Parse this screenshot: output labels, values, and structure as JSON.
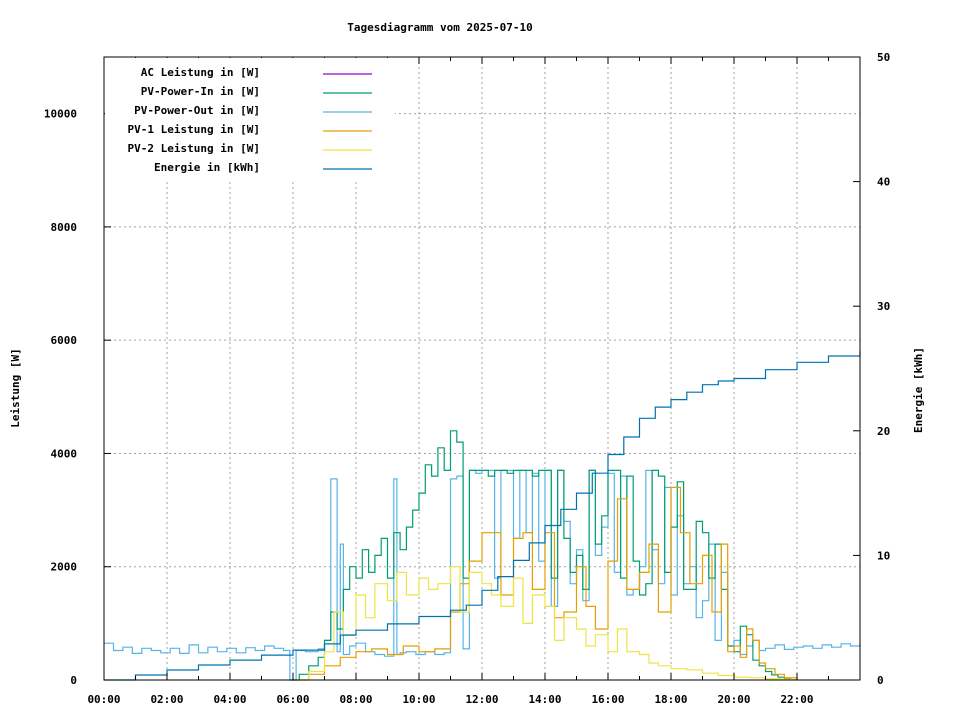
{
  "chart_data": {
    "type": "line",
    "title": "Tagesdiagramm vom 2025-07-10",
    "xlabel": "",
    "ylabel": "Leistung [W]",
    "y2label": "Energie [kWh]",
    "xlim": [
      0,
      24
    ],
    "ylim": [
      0,
      11000
    ],
    "y2lim": [
      0,
      50
    ],
    "x_ticks": [
      "00:00",
      "02:00",
      "04:00",
      "06:00",
      "08:00",
      "10:00",
      "12:00",
      "14:00",
      "16:00",
      "18:00",
      "20:00",
      "22:00"
    ],
    "y_ticks": [
      "0",
      "2000",
      "4000",
      "6000",
      "8000",
      "10000"
    ],
    "y2_ticks": [
      "0",
      "10",
      "20",
      "30",
      "40",
      "50"
    ],
    "grid": true,
    "legend_position": "top-left",
    "series": [
      {
        "name": "AC Leistung in [W]",
        "color": "#9400d3",
        "axis": "y1",
        "x": [
          0,
          24
        ],
        "values": [
          0,
          0
        ]
      },
      {
        "name": "PV-Power-In in [W]",
        "color": "#009e73",
        "axis": "y1",
        "x": [
          5.9,
          6.2,
          6.5,
          6.8,
          7.0,
          7.2,
          7.4,
          7.6,
          7.8,
          8.0,
          8.2,
          8.4,
          8.6,
          8.8,
          9.0,
          9.2,
          9.4,
          9.6,
          9.8,
          10.0,
          10.2,
          10.4,
          10.6,
          10.8,
          11.0,
          11.2,
          11.4,
          11.6,
          11.8,
          12.0,
          12.2,
          12.4,
          12.6,
          12.8,
          13.0,
          13.2,
          13.4,
          13.6,
          13.8,
          14.0,
          14.2,
          14.4,
          14.6,
          14.8,
          15.0,
          15.2,
          15.4,
          15.6,
          15.8,
          16.0,
          16.2,
          16.4,
          16.6,
          16.8,
          17.0,
          17.2,
          17.4,
          17.6,
          17.8,
          18.0,
          18.2,
          18.4,
          18.6,
          18.8,
          19.0,
          19.2,
          19.4,
          19.6,
          19.8,
          20.0,
          20.2,
          20.4,
          20.6,
          20.8,
          21.0,
          21.2,
          21.4,
          21.6,
          21.8,
          22.0
        ],
        "values": [
          0,
          100,
          250,
          400,
          700,
          1200,
          900,
          1600,
          2000,
          1800,
          2300,
          1900,
          2200,
          2500,
          1800,
          2600,
          2300,
          2700,
          3000,
          3300,
          3800,
          3600,
          4100,
          3700,
          4400,
          4200,
          1800,
          3700,
          3700,
          3700,
          3600,
          3700,
          3700,
          3650,
          3700,
          3700,
          3700,
          3600,
          3700,
          3700,
          1800,
          3700,
          2500,
          1900,
          2200,
          1600,
          3700,
          2400,
          2900,
          3700,
          3700,
          1800,
          3600,
          2100,
          1500,
          1700,
          3700,
          3600,
          1900,
          2700,
          3500,
          1600,
          1600,
          2800,
          2600,
          1800,
          2400,
          1600,
          600,
          500,
          950,
          800,
          350,
          250,
          150,
          90,
          50,
          20,
          5,
          0
        ]
      },
      {
        "name": "PV-Power-Out in [W]",
        "color": "#56b4e9",
        "axis": "y1",
        "x": [
          0,
          0.3,
          0.6,
          0.9,
          1.2,
          1.5,
          1.8,
          2.1,
          2.4,
          2.7,
          3.0,
          3.3,
          3.6,
          3.9,
          4.2,
          4.5,
          4.8,
          5.1,
          5.4,
          5.7,
          5.9,
          6.1,
          6.4,
          6.8,
          7.0,
          7.2,
          7.3,
          7.4,
          7.5,
          7.6,
          7.8,
          8.0,
          8.3,
          8.6,
          8.9,
          9.2,
          9.3,
          9.4,
          9.6,
          9.9,
          10.2,
          10.5,
          10.8,
          11.0,
          11.2,
          11.4,
          11.6,
          11.8,
          12.0,
          12.2,
          12.4,
          12.6,
          12.8,
          13.0,
          13.2,
          13.4,
          13.6,
          13.8,
          14.0,
          14.2,
          14.4,
          14.6,
          14.8,
          15.0,
          15.2,
          15.4,
          15.6,
          15.8,
          16.0,
          16.2,
          16.4,
          16.6,
          16.8,
          17.0,
          17.2,
          17.4,
          17.6,
          17.8,
          18.0,
          18.2,
          18.4,
          18.6,
          18.8,
          19.0,
          19.2,
          19.4,
          19.6,
          19.8,
          20.0,
          20.2,
          20.4,
          20.6,
          20.8,
          21.0,
          21.3,
          21.6,
          21.9,
          22.2,
          22.5,
          22.8,
          23.1,
          23.4,
          23.7,
          24.0
        ],
        "values": [
          650,
          520,
          580,
          470,
          560,
          520,
          480,
          560,
          470,
          620,
          480,
          580,
          500,
          560,
          480,
          570,
          520,
          600,
          560,
          520,
          0,
          520,
          500,
          550,
          700,
          3550,
          3550,
          500,
          2400,
          450,
          600,
          650,
          500,
          450,
          420,
          3550,
          450,
          480,
          500,
          450,
          500,
          450,
          480,
          3550,
          3600,
          550,
          3700,
          3650,
          3700,
          3700,
          1800,
          3700,
          3700,
          2500,
          3700,
          2600,
          3650,
          2100,
          3700,
          1300,
          3700,
          2800,
          1700,
          2300,
          1400,
          3700,
          2200,
          2700,
          3650,
          1900,
          3600,
          1500,
          1600,
          2000,
          3700,
          2300,
          1700,
          3400,
          1500,
          2900,
          1700,
          2000,
          1100,
          1400,
          2400,
          700,
          1900,
          600,
          700,
          450,
          600,
          700,
          520,
          560,
          620,
          540,
          580,
          600,
          560,
          620,
          580,
          640,
          600,
          650
        ]
      },
      {
        "name": "PV-1 Leistung in [W]",
        "color": "#e69f00",
        "axis": "y1",
        "x": [
          6.0,
          6.5,
          7.0,
          7.5,
          8.0,
          8.5,
          9.0,
          9.5,
          10.0,
          10.5,
          11.0,
          11.3,
          11.6,
          12.0,
          12.3,
          12.6,
          13.0,
          13.3,
          13.6,
          14.0,
          14.3,
          14.6,
          15.0,
          15.3,
          15.6,
          16.0,
          16.3,
          16.6,
          17.0,
          17.3,
          17.6,
          18.0,
          18.3,
          18.6,
          19.0,
          19.3,
          19.6,
          19.8,
          20.0,
          20.2,
          20.4,
          20.6,
          20.8,
          21.0,
          21.3,
          21.6,
          22.0
        ],
        "values": [
          0,
          100,
          250,
          400,
          500,
          550,
          450,
          600,
          500,
          550,
          1200,
          1700,
          2100,
          2600,
          2600,
          1500,
          2500,
          2600,
          1600,
          2600,
          1100,
          1200,
          2000,
          1300,
          900,
          2100,
          3200,
          1600,
          1900,
          2400,
          1200,
          3400,
          2600,
          1700,
          2200,
          1200,
          2400,
          500,
          600,
          400,
          900,
          700,
          300,
          200,
          100,
          40,
          0
        ]
      },
      {
        "name": "PV-2 Leistung in [W]",
        "color": "#f0e442",
        "axis": "y1",
        "x": [
          6.0,
          6.5,
          7.0,
          7.3,
          7.6,
          8.0,
          8.3,
          8.6,
          9.0,
          9.3,
          9.6,
          10.0,
          10.3,
          10.6,
          11.0,
          11.3,
          11.6,
          12.0,
          12.3,
          12.6,
          13.0,
          13.3,
          13.6,
          14.0,
          14.3,
          14.6,
          15.0,
          15.3,
          15.6,
          16.0,
          16.3,
          16.6,
          17.0,
          17.3,
          17.6,
          18.0,
          18.5,
          19.0,
          19.5,
          20.0,
          20.5,
          21.0,
          21.5,
          22.0
        ],
        "values": [
          0,
          150,
          500,
          1200,
          800,
          1500,
          1100,
          1700,
          1400,
          1900,
          1500,
          1800,
          1600,
          1700,
          2000,
          1200,
          1900,
          1700,
          1500,
          1300,
          1800,
          1000,
          1500,
          1300,
          700,
          1100,
          900,
          600,
          800,
          500,
          900,
          500,
          450,
          300,
          250,
          200,
          180,
          120,
          80,
          50,
          40,
          20,
          10,
          0
        ]
      },
      {
        "name": "Energie in [kWh]",
        "color": "#0072b2",
        "axis": "y2",
        "x": [
          0,
          1,
          2,
          3,
          4,
          5,
          6,
          7,
          7.5,
          8,
          9,
          10,
          11,
          11.5,
          12,
          12.5,
          13,
          13.5,
          14,
          14.5,
          15,
          15.5,
          16,
          16.5,
          17,
          17.5,
          18,
          18.5,
          19,
          19.5,
          20,
          21,
          22,
          23,
          24
        ],
        "values": [
          0,
          0.4,
          0.8,
          1.2,
          1.6,
          2.0,
          2.4,
          2.9,
          3.6,
          4.0,
          4.5,
          5.1,
          5.6,
          6.0,
          7.2,
          8.3,
          9.6,
          11.0,
          12.4,
          13.7,
          15.0,
          16.6,
          18.1,
          19.5,
          21.0,
          21.9,
          22.5,
          23.1,
          23.7,
          24.0,
          24.2,
          24.9,
          25.5,
          26.0,
          26.4
        ]
      }
    ]
  }
}
